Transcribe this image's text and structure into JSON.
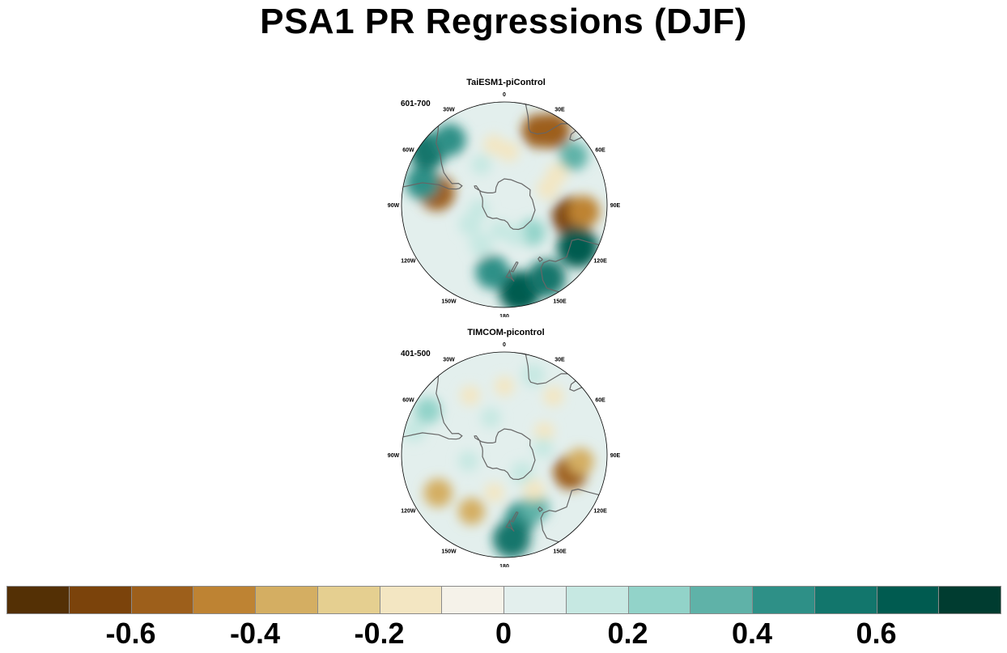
{
  "title": "PSA1 PR Regressions (DJF)",
  "panels": [
    {
      "title": "TaiESM1-piControl",
      "period": "601-700",
      "blobs": [
        {
          "lon": 100,
          "lat": -40,
          "v": -0.65
        },
        {
          "lon": 95,
          "lat": -33,
          "v": -0.45
        },
        {
          "lon": -80,
          "lat": -40,
          "v": -0.55
        },
        {
          "lon": -75,
          "lat": -30,
          "v": 0.5
        },
        {
          "lon": -55,
          "lat": -25,
          "v": 0.6
        },
        {
          "lon": -40,
          "lat": -30,
          "v": 0.45
        },
        {
          "lon": 25,
          "lat": -32,
          "v": -0.5
        },
        {
          "lon": 33,
          "lat": -28,
          "v": -0.55
        },
        {
          "lon": 55,
          "lat": -30,
          "v": 0.35
        },
        {
          "lon": 60,
          "lat": -45,
          "v": -0.15
        },
        {
          "lon": 70,
          "lat": -55,
          "v": -0.15
        },
        {
          "lon": 170,
          "lat": -28,
          "v": 0.7
        },
        {
          "lon": -170,
          "lat": -40,
          "v": 0.5
        },
        {
          "lon": 150,
          "lat": -30,
          "v": 0.6
        },
        {
          "lon": 135,
          "lat": -60,
          "v": 0.3
        },
        {
          "lon": 120,
          "lat": -30,
          "v": 0.7
        },
        {
          "lon": -150,
          "lat": -55,
          "v": 0.2
        },
        {
          "lon": -120,
          "lat": -60,
          "v": 0.2
        },
        {
          "lon": -10,
          "lat": -45,
          "v": -0.12
        },
        {
          "lon": 5,
          "lat": -50,
          "v": -0.12
        },
        {
          "lon": -30,
          "lat": -55,
          "v": 0.12
        },
        {
          "lon": 160,
          "lat": -65,
          "v": 0.15
        },
        {
          "lon": -170,
          "lat": -70,
          "v": 0.12
        },
        {
          "lon": -100,
          "lat": -70,
          "v": 0.12
        }
      ]
    },
    {
      "title": "TIMCOM-picontrol",
      "period": "401-500",
      "blobs": [
        {
          "lon": 105,
          "lat": -40,
          "v": -0.5
        },
        {
          "lon": 95,
          "lat": -35,
          "v": -0.3
        },
        {
          "lon": -120,
          "lat": -35,
          "v": -0.35
        },
        {
          "lon": -150,
          "lat": -42,
          "v": -0.3
        },
        {
          "lon": 165,
          "lat": -42,
          "v": 0.45
        },
        {
          "lon": 175,
          "lat": -30,
          "v": 0.6
        },
        {
          "lon": 150,
          "lat": -45,
          "v": 0.35
        },
        {
          "lon": 135,
          "lat": -70,
          "v": 0.2
        },
        {
          "lon": 140,
          "lat": -55,
          "v": -0.15
        },
        {
          "lon": -165,
          "lat": -60,
          "v": -0.1
        },
        {
          "lon": -60,
          "lat": -28,
          "v": 0.3
        },
        {
          "lon": -75,
          "lat": -25,
          "v": 0.2
        },
        {
          "lon": 20,
          "lat": -30,
          "v": 0.2
        },
        {
          "lon": 40,
          "lat": -35,
          "v": -0.12
        },
        {
          "lon": 0,
          "lat": -40,
          "v": -0.1
        },
        {
          "lon": -30,
          "lat": -40,
          "v": -0.1
        },
        {
          "lon": 60,
          "lat": -55,
          "v": -0.1
        },
        {
          "lon": 80,
          "lat": -60,
          "v": 0.12
        },
        {
          "lon": -100,
          "lat": -62,
          "v": 0.12
        },
        {
          "lon": -20,
          "lat": -60,
          "v": 0.12
        }
      ]
    }
  ],
  "lon_labels": [
    {
      "lon": 0,
      "text": "0"
    },
    {
      "lon": 30,
      "text": "30E"
    },
    {
      "lon": 60,
      "text": "60E"
    },
    {
      "lon": 90,
      "text": "90E"
    },
    {
      "lon": 120,
      "text": "120E"
    },
    {
      "lon": 150,
      "text": "150E"
    },
    {
      "lon": 180,
      "text": "180"
    },
    {
      "lon": -150,
      "text": "150W"
    },
    {
      "lon": -120,
      "text": "120W"
    },
    {
      "lon": -90,
      "text": "90W"
    },
    {
      "lon": -60,
      "text": "60W"
    },
    {
      "lon": -30,
      "text": "30W"
    }
  ],
  "colorbar": {
    "levels": [
      -0.7,
      -0.6,
      -0.5,
      -0.4,
      -0.3,
      -0.2,
      -0.1,
      0,
      0.1,
      0.2,
      0.3,
      0.4,
      0.5,
      0.6,
      0.7
    ],
    "colors": [
      "#543005",
      "#7b430b",
      "#9d5f1b",
      "#be8333",
      "#d4ae62",
      "#e5cf90",
      "#f3e6c2",
      "#f5f2e9",
      "#e3efed",
      "#c6e8e2",
      "#92d3c9",
      "#5fb2a8",
      "#2e9087",
      "#12766c",
      "#005b50",
      "#003c30"
    ],
    "tick_labels": [
      {
        "value": -0.6,
        "text": "-0.6"
      },
      {
        "value": -0.4,
        "text": "-0.4"
      },
      {
        "value": -0.2,
        "text": "-0.2"
      },
      {
        "value": 0,
        "text": "0"
      },
      {
        "value": 0.2,
        "text": "0.2"
      },
      {
        "value": 0.4,
        "text": "0.4"
      },
      {
        "value": 0.6,
        "text": "0.6"
      }
    ]
  }
}
